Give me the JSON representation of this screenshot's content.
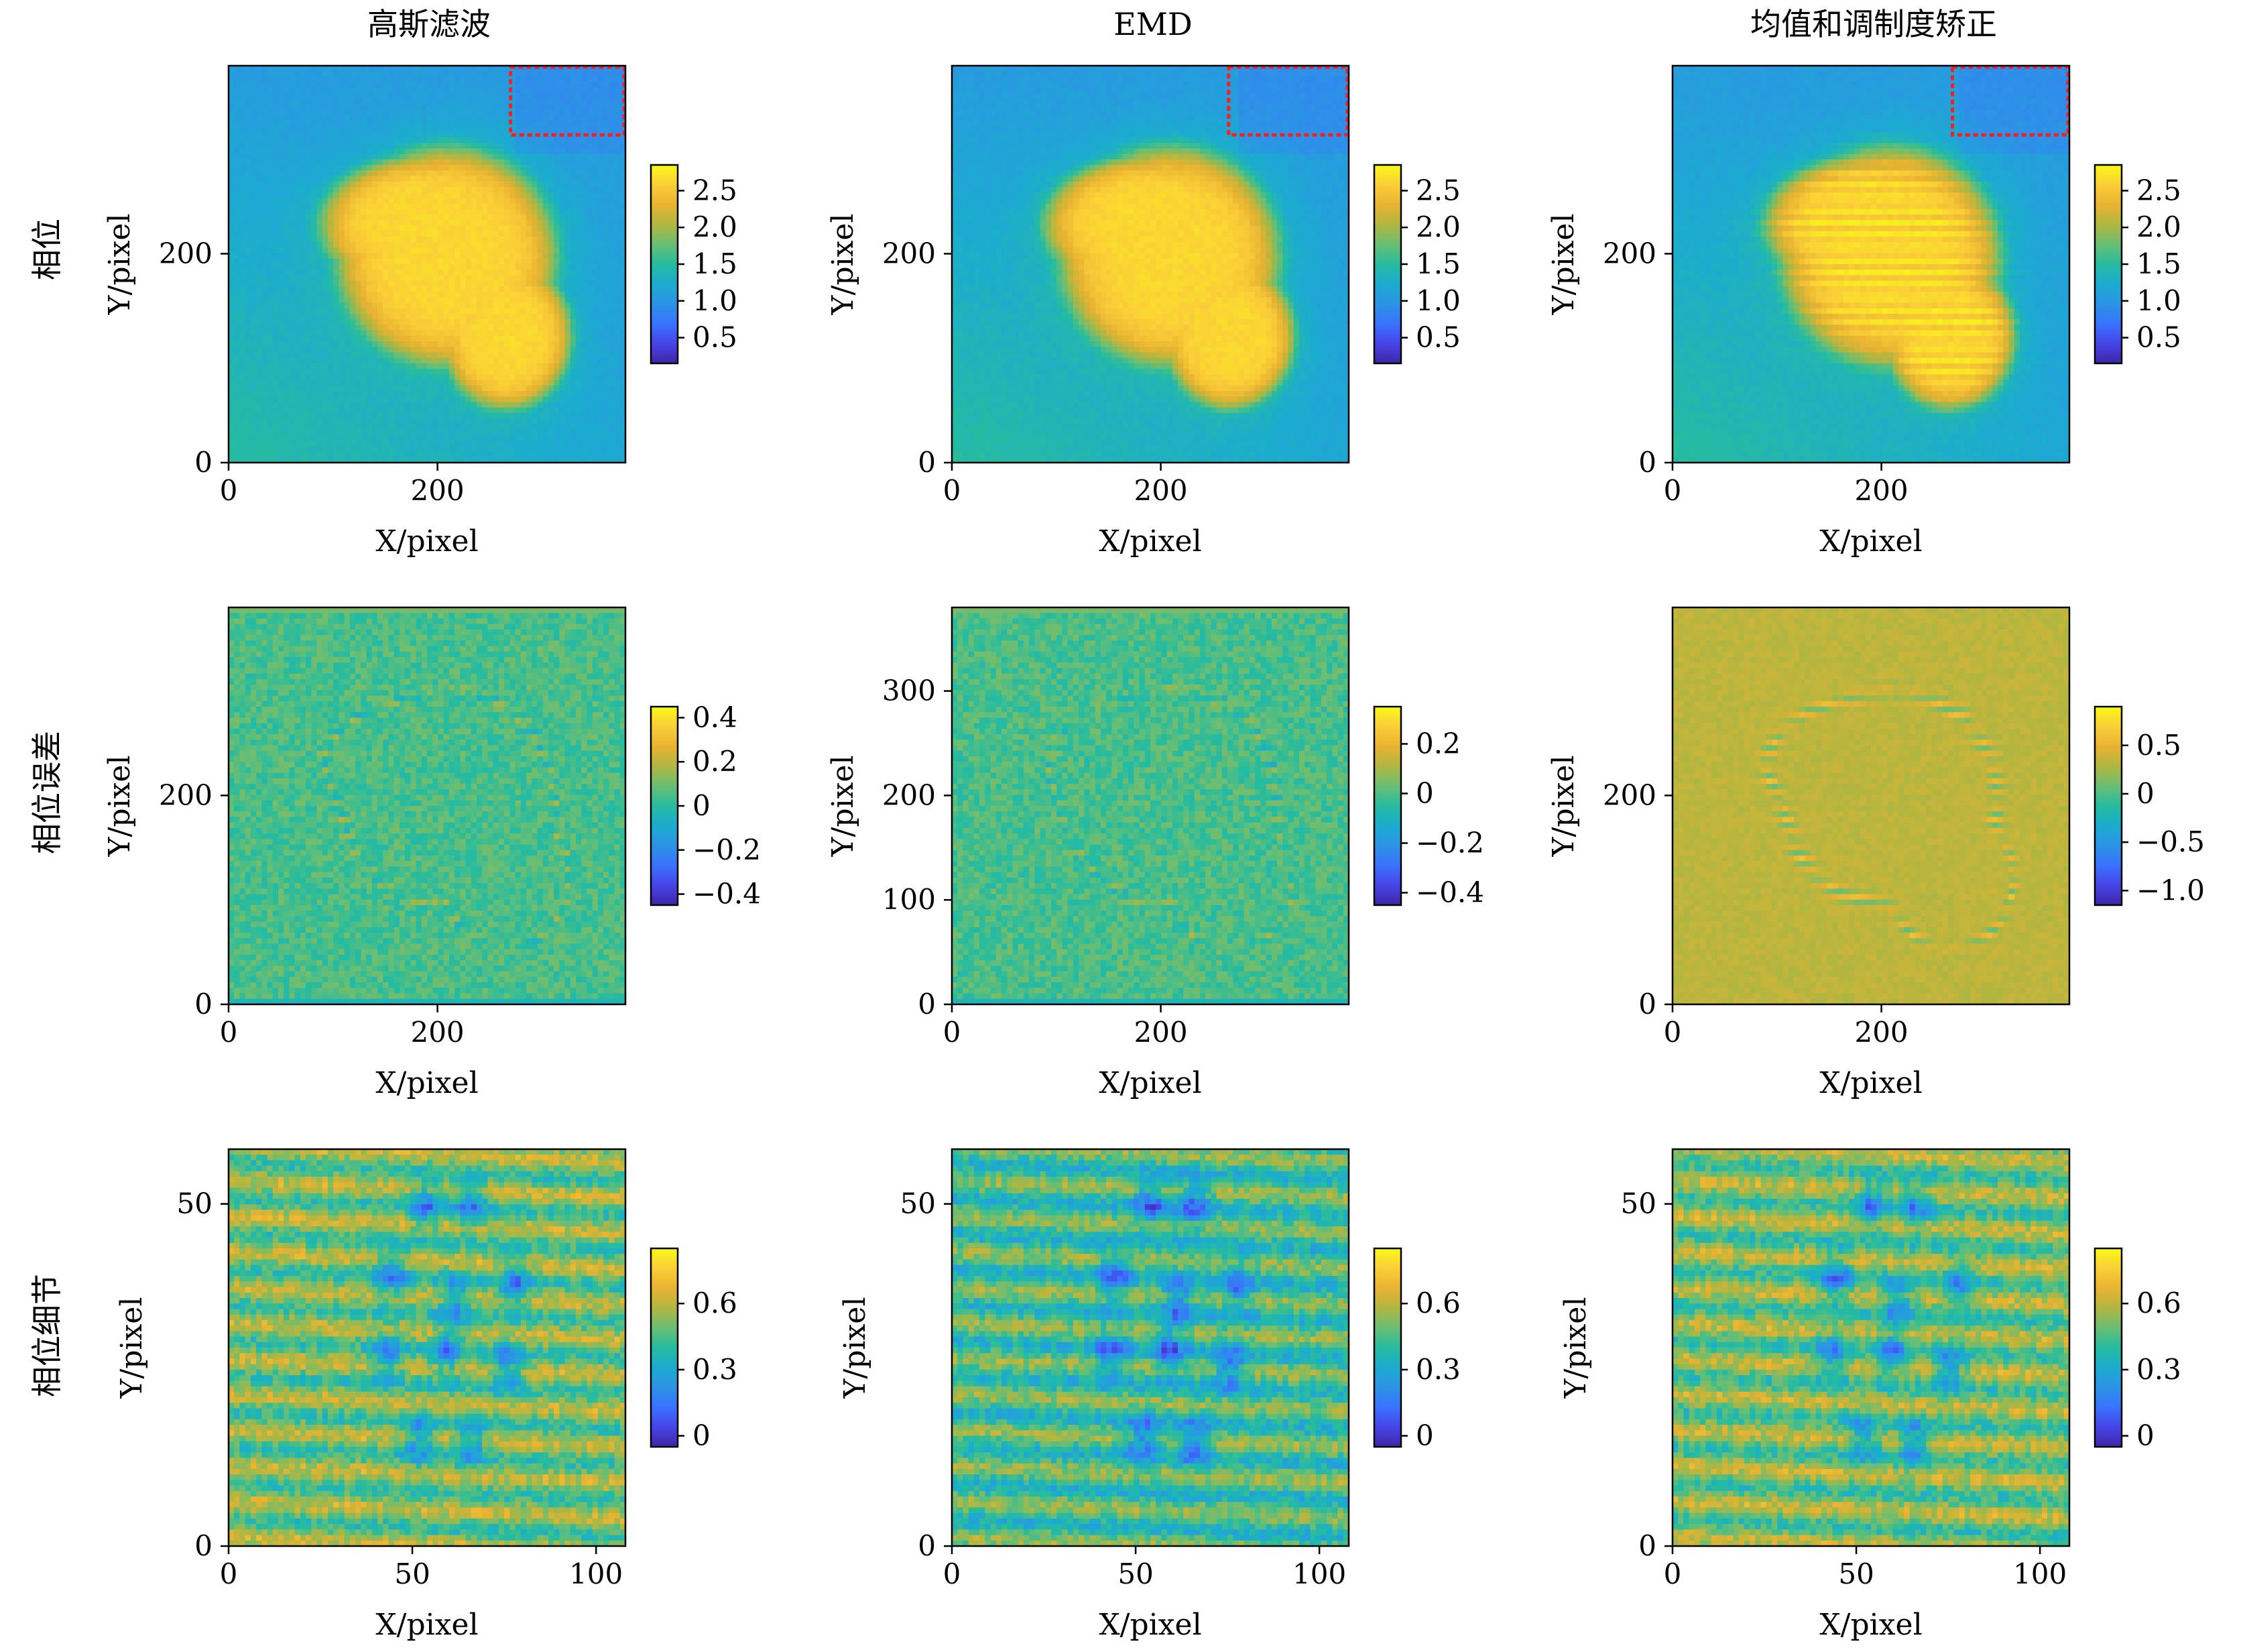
{
  "figure": {
    "column_titles": [
      "高斯滤波",
      "EMD",
      "均值和调制度矫正"
    ],
    "row_labels": [
      "相位",
      "相位误差",
      "相位细节"
    ]
  },
  "colors": {
    "colormap": [
      "#3e26a8",
      "#4744e8",
      "#3873fe",
      "#2c94e5",
      "#1baccf",
      "#26bc9f",
      "#6abe73",
      "#b1b641",
      "#e9b331",
      "#fbcf38",
      "#f8f915"
    ],
    "roi_box": "#ff1b1b"
  },
  "chart_data": [
    {
      "id": "phase-gaussian",
      "type": "heatmap",
      "row": 0,
      "col": 0,
      "title": "高斯滤波",
      "row_label": "相位",
      "xlabel": "X/pixel",
      "ylabel": "Y/pixel",
      "xlim": [
        0,
        380
      ],
      "ylim": [
        0,
        380
      ],
      "xticks": [
        0,
        200
      ],
      "xtick_labels": [
        "0",
        "200"
      ],
      "yticks": [
        0,
        200
      ],
      "ytick_labels": [
        "0",
        "200"
      ],
      "clim": [
        0.15,
        2.85
      ],
      "colorbar_ticks": [
        0.5,
        1.0,
        1.5,
        2.0,
        2.5
      ],
      "colorbar_labels": [
        "0.5",
        "1.0",
        "1.5",
        "2.0",
        "2.5"
      ],
      "roi": {
        "x": [
          270,
          380
        ],
        "y": [
          315,
          380
        ]
      }
    },
    {
      "id": "phase-emd",
      "type": "heatmap",
      "row": 0,
      "col": 1,
      "title": "EMD",
      "row_label": "相位",
      "xlabel": "X/pixel",
      "ylabel": "Y/pixel",
      "xlim": [
        0,
        380
      ],
      "ylim": [
        0,
        380
      ],
      "xticks": [
        0,
        200
      ],
      "xtick_labels": [
        "0",
        "200"
      ],
      "yticks": [
        0,
        200
      ],
      "ytick_labels": [
        "0",
        "200"
      ],
      "clim": [
        0.15,
        2.85
      ],
      "colorbar_ticks": [
        0.5,
        1.0,
        1.5,
        2.0,
        2.5
      ],
      "colorbar_labels": [
        "0.5",
        "1.0",
        "1.5",
        "2.0",
        "2.5"
      ],
      "roi": {
        "x": [
          265,
          380
        ],
        "y": [
          315,
          380
        ]
      }
    },
    {
      "id": "phase-mean-modulation",
      "type": "heatmap",
      "row": 0,
      "col": 2,
      "title": "均值和调制度矫正",
      "row_label": "相位",
      "xlabel": "X/pixel",
      "ylabel": "Y/pixel",
      "xlim": [
        0,
        380
      ],
      "ylim": [
        0,
        380
      ],
      "xticks": [
        0,
        200
      ],
      "xtick_labels": [
        "0",
        "200"
      ],
      "yticks": [
        0,
        200
      ],
      "ytick_labels": [
        "0",
        "200"
      ],
      "clim": [
        0.15,
        2.85
      ],
      "colorbar_ticks": [
        0.5,
        1.0,
        1.5,
        2.0,
        2.5
      ],
      "colorbar_labels": [
        "0.5",
        "1.0",
        "1.5",
        "2.0",
        "2.5"
      ],
      "roi": {
        "x": [
          268,
          380
        ],
        "y": [
          315,
          380
        ]
      }
    },
    {
      "id": "error-gaussian",
      "type": "heatmap",
      "row": 1,
      "col": 0,
      "row_label": "相位误差",
      "xlabel": "X/pixel",
      "ylabel": "Y/pixel",
      "xlim": [
        0,
        380
      ],
      "ylim": [
        0,
        380
      ],
      "xticks": [
        0,
        200
      ],
      "xtick_labels": [
        "0",
        "200"
      ],
      "yticks": [
        0,
        200
      ],
      "ytick_labels": [
        "0",
        "200"
      ],
      "clim": [
        -0.45,
        0.45
      ],
      "colorbar_ticks": [
        -0.4,
        -0.2,
        0,
        0.2,
        0.4
      ],
      "colorbar_labels": [
        "−0.4",
        "−0.2",
        "0",
        "0.2",
        "0.4"
      ]
    },
    {
      "id": "error-emd",
      "type": "heatmap",
      "row": 1,
      "col": 1,
      "row_label": "相位误差",
      "xlabel": "X/pixel",
      "ylabel": "Y/pixel",
      "xlim": [
        0,
        380
      ],
      "ylim": [
        0,
        380
      ],
      "xticks": [
        0,
        200
      ],
      "xtick_labels": [
        "0",
        "200"
      ],
      "yticks": [
        0,
        100,
        200,
        300
      ],
      "ytick_labels": [
        "0",
        "100",
        "200",
        "300"
      ],
      "clim": [
        -0.45,
        0.35
      ],
      "colorbar_ticks": [
        -0.4,
        -0.2,
        0,
        0.2
      ],
      "colorbar_labels": [
        "−0.4",
        "−0.2",
        "0",
        "0.2"
      ]
    },
    {
      "id": "error-mean-modulation",
      "type": "heatmap",
      "row": 1,
      "col": 2,
      "row_label": "相位误差",
      "xlabel": "X/pixel",
      "ylabel": "Y/pixel",
      "xlim": [
        0,
        380
      ],
      "ylim": [
        0,
        380
      ],
      "xticks": [
        0,
        200
      ],
      "xtick_labels": [
        "0",
        "200"
      ],
      "yticks": [
        0,
        200
      ],
      "ytick_labels": [
        "0",
        "200"
      ],
      "clim": [
        -1.15,
        0.9
      ],
      "colorbar_ticks": [
        -1.0,
        -0.5,
        0,
        0.5
      ],
      "colorbar_labels": [
        "−1.0",
        "−0.5",
        "0",
        "0.5"
      ]
    },
    {
      "id": "detail-gaussian",
      "type": "heatmap",
      "row": 2,
      "col": 0,
      "row_label": "相位细节",
      "xlabel": "X/pixel",
      "ylabel": "Y/pixel",
      "xlim": [
        0,
        108
      ],
      "ylim": [
        0,
        58
      ],
      "xticks": [
        0,
        50,
        100
      ],
      "xtick_labels": [
        "0",
        "50",
        "100"
      ],
      "yticks": [
        0,
        50
      ],
      "ytick_labels": [
        "0",
        "50"
      ],
      "clim": [
        -0.05,
        0.85
      ],
      "colorbar_ticks": [
        0,
        0.3,
        0.6
      ],
      "colorbar_labels": [
        "0",
        "0.3",
        "0.6"
      ]
    },
    {
      "id": "detail-emd",
      "type": "heatmap",
      "row": 2,
      "col": 1,
      "row_label": "相位细节",
      "xlabel": "X/pixel",
      "ylabel": "Y/pixel",
      "xlim": [
        0,
        108
      ],
      "ylim": [
        0,
        58
      ],
      "xticks": [
        0,
        50,
        100
      ],
      "xtick_labels": [
        "0",
        "50",
        "100"
      ],
      "yticks": [
        0,
        50
      ],
      "ytick_labels": [
        "0",
        "50"
      ],
      "clim": [
        -0.05,
        0.85
      ],
      "colorbar_ticks": [
        0,
        0.3,
        0.6
      ],
      "colorbar_labels": [
        "0",
        "0.3",
        "0.6"
      ]
    },
    {
      "id": "detail-mean-modulation",
      "type": "heatmap",
      "row": 2,
      "col": 2,
      "row_label": "相位细节",
      "xlabel": "X/pixel",
      "ylabel": "Y/pixel",
      "xlim": [
        0,
        108
      ],
      "ylim": [
        0,
        58
      ],
      "xticks": [
        0,
        50,
        100
      ],
      "xtick_labels": [
        "0",
        "50",
        "100"
      ],
      "yticks": [
        0,
        50
      ],
      "ytick_labels": [
        "0",
        "50"
      ],
      "clim": [
        -0.05,
        0.85
      ],
      "colorbar_ticks": [
        0,
        0.3,
        0.6
      ],
      "colorbar_labels": [
        "0",
        "0.3",
        "0.6"
      ]
    }
  ]
}
